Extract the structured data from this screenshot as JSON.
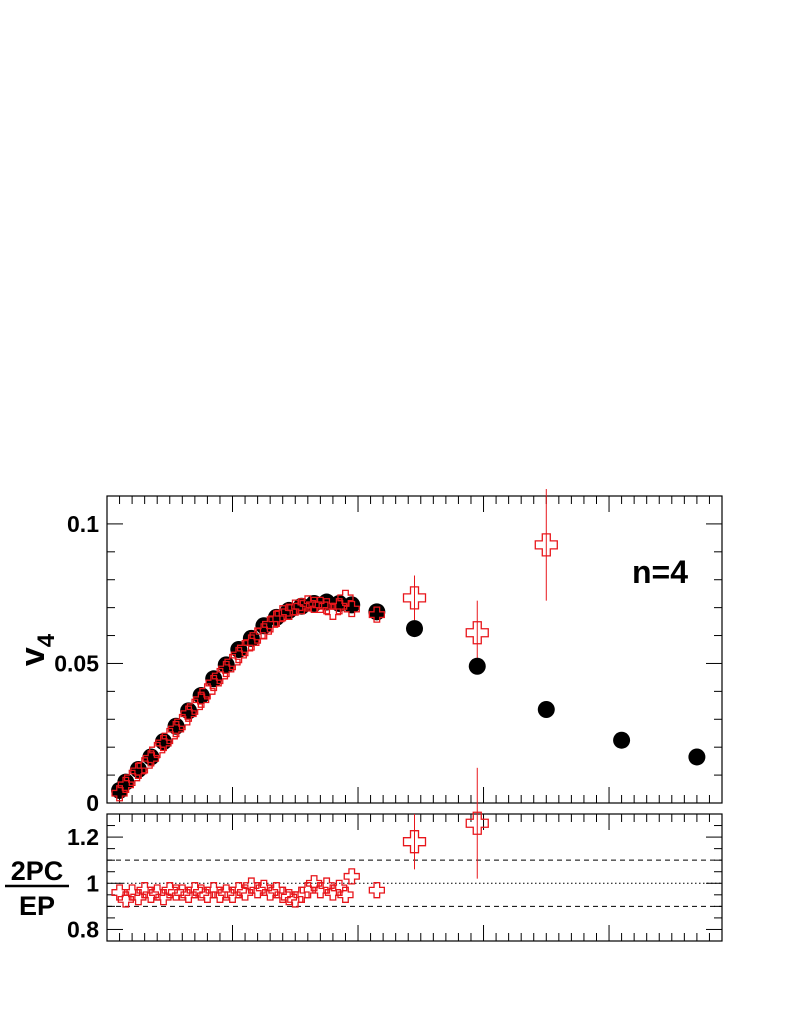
{
  "chart_data": [
    {
      "type": "scatter",
      "panel": "main",
      "ylabel": "v",
      "ylabel_subscript": "4",
      "annotation": "n=4",
      "xlim": [
        0,
        4.9
      ],
      "ylim": [
        0,
        0.11
      ],
      "yticks": [
        {
          "value": 0,
          "label": "0"
        },
        {
          "value": 0.05,
          "label": "0.05"
        },
        {
          "value": 0.1,
          "label": "0.1"
        }
      ],
      "colors": {
        "ep": "#000000",
        "pc": "#e8161b"
      },
      "series": [
        {
          "marker": "filled-circle",
          "x": [
            0.1,
            0.15,
            0.25,
            0.35,
            0.45,
            0.55,
            0.65,
            0.75,
            0.85,
            0.95,
            1.05,
            1.15,
            1.25,
            1.35,
            1.45,
            1.55,
            1.65,
            1.75,
            1.85,
            1.95,
            2.15,
            2.45,
            2.95,
            3.5,
            4.1,
            4.7
          ],
          "y": [
            0.0045,
            0.0075,
            0.012,
            0.0165,
            0.022,
            0.0275,
            0.033,
            0.0385,
            0.0445,
            0.0495,
            0.055,
            0.059,
            0.0635,
            0.0665,
            0.069,
            0.0705,
            0.0715,
            0.072,
            0.0715,
            0.071,
            0.0685,
            0.0625,
            0.049,
            0.0335,
            0.0225,
            0.0165
          ]
        },
        {
          "marker": "open-cross",
          "x": [
            0.1,
            0.15,
            0.2,
            0.25,
            0.3,
            0.35,
            0.4,
            0.45,
            0.5,
            0.55,
            0.6,
            0.65,
            0.7,
            0.75,
            0.8,
            0.85,
            0.9,
            0.95,
            1.0,
            1.05,
            1.1,
            1.15,
            1.2,
            1.25,
            1.3,
            1.35,
            1.4,
            1.45,
            1.5,
            1.55,
            1.6,
            1.65,
            1.7,
            1.75,
            1.8,
            1.85,
            1.9,
            1.95,
            2.15,
            2.45,
            2.95,
            3.5
          ],
          "y": [
            0.0035,
            0.0065,
            0.009,
            0.0115,
            0.0135,
            0.016,
            0.019,
            0.0215,
            0.024,
            0.0265,
            0.029,
            0.032,
            0.0345,
            0.037,
            0.04,
            0.043,
            0.0455,
            0.048,
            0.0505,
            0.053,
            0.0555,
            0.0575,
            0.06,
            0.0615,
            0.064,
            0.066,
            0.068,
            0.0685,
            0.07,
            0.0705,
            0.0715,
            0.071,
            0.071,
            0.0705,
            0.0685,
            0.0705,
            0.0735,
            0.0695,
            0.0675,
            0.0735,
            0.061,
            0.0925
          ],
          "yerr": [
            0,
            0,
            0,
            0,
            0,
            0,
            0,
            0,
            0,
            0,
            0,
            0,
            0,
            0,
            0,
            0,
            0,
            0,
            0,
            0,
            0,
            0,
            0,
            0,
            0,
            0,
            0,
            0,
            0,
            0,
            0,
            0,
            0,
            0,
            0,
            0,
            0,
            0,
            0,
            0.008,
            0.0115,
            0.02
          ]
        }
      ]
    },
    {
      "type": "scatter",
      "panel": "ratio",
      "ylabel_numerator": "2PC",
      "ylabel_denominator": "EP",
      "xlim": [
        0,
        4.9
      ],
      "ylim": [
        0.75,
        1.3
      ],
      "yticks": [
        {
          "value": 0.8,
          "label": "0.8"
        },
        {
          "value": 1,
          "label": "1"
        },
        {
          "value": 1.2,
          "label": "1.2"
        }
      ],
      "reference_lines": [
        {
          "y": 1.1,
          "style": "dashed"
        },
        {
          "y": 1.0,
          "style": "dotted"
        },
        {
          "y": 0.9,
          "style": "dashed"
        }
      ],
      "series": [
        {
          "marker": "open-cross",
          "x": [
            0.1,
            0.15,
            0.2,
            0.25,
            0.3,
            0.35,
            0.4,
            0.45,
            0.5,
            0.55,
            0.6,
            0.65,
            0.7,
            0.75,
            0.8,
            0.85,
            0.9,
            0.95,
            1.0,
            1.05,
            1.1,
            1.15,
            1.2,
            1.25,
            1.3,
            1.35,
            1.4,
            1.45,
            1.5,
            1.55,
            1.6,
            1.65,
            1.7,
            1.75,
            1.8,
            1.85,
            1.9,
            1.95,
            2.15,
            2.45,
            2.95
          ],
          "y": [
            0.96,
            0.93,
            0.96,
            0.94,
            0.97,
            0.95,
            0.96,
            0.94,
            0.97,
            0.96,
            0.96,
            0.95,
            0.97,
            0.96,
            0.95,
            0.97,
            0.95,
            0.96,
            0.95,
            0.97,
            0.96,
            0.99,
            0.97,
            0.98,
            0.96,
            0.97,
            0.95,
            0.94,
            0.93,
            0.95,
            0.97,
            1.0,
            0.97,
            0.99,
            0.96,
            0.98,
            0.95,
            1.03,
            0.97,
            1.18,
            1.26
          ],
          "yerr": [
            0,
            0,
            0,
            0,
            0,
            0,
            0,
            0,
            0,
            0,
            0,
            0,
            0,
            0,
            0,
            0,
            0,
            0,
            0,
            0,
            0,
            0,
            0,
            0,
            0,
            0,
            0,
            0,
            0,
            0,
            0,
            0,
            0,
            0,
            0,
            0,
            0,
            0,
            0,
            0.12,
            0.24
          ]
        }
      ]
    }
  ]
}
